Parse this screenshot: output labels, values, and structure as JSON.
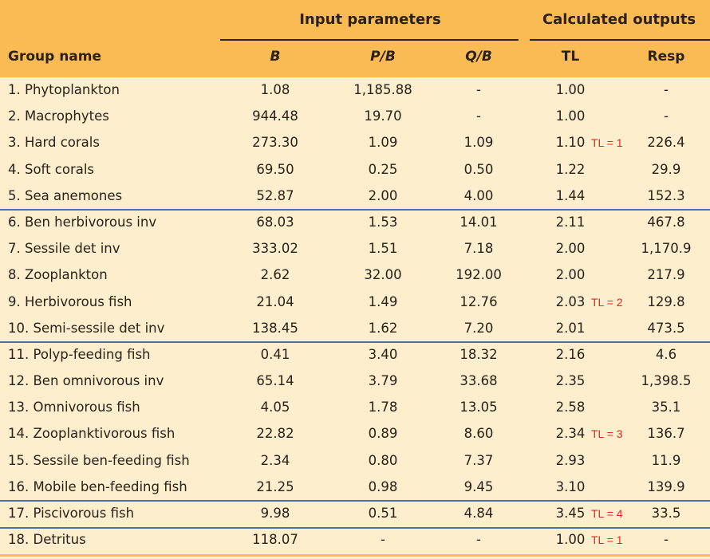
{
  "header": {
    "group_input": "Input parameters",
    "group_output": "Calculated outputs",
    "columns": {
      "name": "Group name",
      "b": "B",
      "pb": "P/B",
      "qb": "Q/B",
      "tl": "TL",
      "resp": "Resp"
    }
  },
  "rows": [
    {
      "name": "1. Phytoplankton",
      "b": "1.08",
      "pb": "1,185.88",
      "qb": "-",
      "tl": "1.00",
      "resp": "-",
      "annot": ""
    },
    {
      "name": "2. Macrophytes",
      "b": "944.48",
      "pb": "19.70",
      "qb": "-",
      "tl": "1.00",
      "resp": "-",
      "annot": ""
    },
    {
      "name": "3. Hard corals",
      "b": "273.30",
      "pb": "1.09",
      "qb": "1.09",
      "tl": "1.10",
      "resp": "226.4",
      "annot": "TL = 1"
    },
    {
      "name": "4. Soft corals",
      "b": "69.50",
      "pb": "0.25",
      "qb": "0.50",
      "tl": "1.22",
      "resp": "29.9",
      "annot": ""
    },
    {
      "name": "5. Sea anemones",
      "b": "52.87",
      "pb": "2.00",
      "qb": "4.00",
      "tl": "1.44",
      "resp": "152.3",
      "annot": ""
    },
    {
      "name": "6. Ben herbivorous inv",
      "b": "68.03",
      "pb": "1.53",
      "qb": "14.01",
      "tl": "2.11",
      "resp": "467.8",
      "annot": ""
    },
    {
      "name": "7. Sessile det inv",
      "b": "333.02",
      "pb": "1.51",
      "qb": "7.18",
      "tl": "2.00",
      "resp": "1,170.9",
      "annot": ""
    },
    {
      "name": "8. Zooplankton",
      "b": "2.62",
      "pb": "32.00",
      "qb": "192.00",
      "tl": "2.00",
      "resp": "217.9",
      "annot": ""
    },
    {
      "name": "9. Herbivorous fish",
      "b": "21.04",
      "pb": "1.49",
      "qb": "12.76",
      "tl": "2.03",
      "resp": "129.8",
      "annot": "TL = 2"
    },
    {
      "name": "10. Semi-sessile det inv",
      "b": "138.45",
      "pb": "1.62",
      "qb": "7.20",
      "tl": "2.01",
      "resp": "473.5",
      "annot": ""
    },
    {
      "name": "11. Polyp-feeding fish",
      "b": "0.41",
      "pb": "3.40",
      "qb": "18.32",
      "tl": "2.16",
      "resp": "4.6",
      "annot": ""
    },
    {
      "name": "12. Ben omnivorous inv",
      "b": "65.14",
      "pb": "3.79",
      "qb": "33.68",
      "tl": "2.35",
      "resp": "1,398.5",
      "annot": ""
    },
    {
      "name": "13. Omnivorous fish",
      "b": "4.05",
      "pb": "1.78",
      "qb": "13.05",
      "tl": "2.58",
      "resp": "35.1",
      "annot": ""
    },
    {
      "name": "14. Zooplanktivorous fish",
      "b": "22.82",
      "pb": "0.89",
      "qb": "8.60",
      "tl": "2.34",
      "resp": "136.7",
      "annot": "TL = 3"
    },
    {
      "name": "15. Sessile ben-feeding fish",
      "b": "2.34",
      "pb": "0.80",
      "qb": "7.37",
      "tl": "2.93",
      "resp": "11.9",
      "annot": ""
    },
    {
      "name": "16. Mobile ben-feeding fish",
      "b": "21.25",
      "pb": "0.98",
      "qb": "9.45",
      "tl": "3.10",
      "resp": "139.9",
      "annot": ""
    },
    {
      "name": "17. Piscivorous fish",
      "b": "9.98",
      "pb": "0.51",
      "qb": "4.84",
      "tl": "3.45",
      "resp": "33.5",
      "annot": "TL = 4"
    },
    {
      "name": "18. Detritus",
      "b": "118.07",
      "pb": "-",
      "qb": "-",
      "tl": "1.00",
      "resp": "-",
      "annot": "TL = 1"
    }
  ],
  "colors": {
    "header_bg": "#fbbb54",
    "body_bg": "#fdeecd",
    "separator": "#4f6fa8",
    "annotation": "#e4261c"
  }
}
